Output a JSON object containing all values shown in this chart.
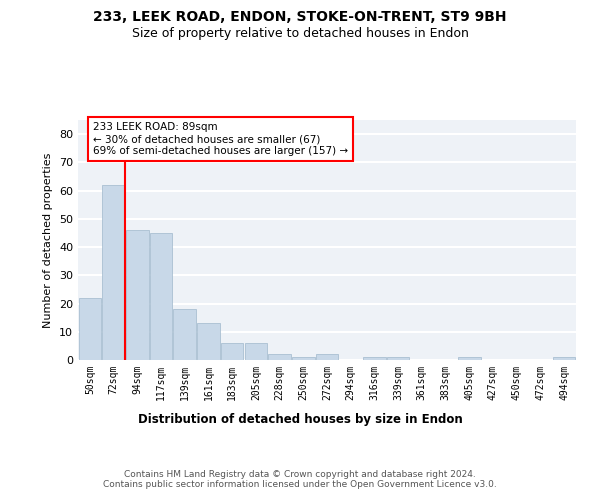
{
  "title1": "233, LEEK ROAD, ENDON, STOKE-ON-TRENT, ST9 9BH",
  "title2": "Size of property relative to detached houses in Endon",
  "xlabel": "Distribution of detached houses by size in Endon",
  "ylabel": "Number of detached properties",
  "bar_color": "#c8d8e8",
  "bar_edge_color": "#a0b8cc",
  "categories": [
    "50sqm",
    "72sqm",
    "94sqm",
    "117sqm",
    "139sqm",
    "161sqm",
    "183sqm",
    "205sqm",
    "228sqm",
    "250sqm",
    "272sqm",
    "294sqm",
    "316sqm",
    "339sqm",
    "361sqm",
    "383sqm",
    "405sqm",
    "427sqm",
    "450sqm",
    "472sqm",
    "494sqm"
  ],
  "values": [
    22,
    62,
    46,
    45,
    18,
    13,
    6,
    6,
    2,
    1,
    2,
    0,
    1,
    1,
    0,
    0,
    1,
    0,
    0,
    0,
    1
  ],
  "ylim": [
    0,
    85
  ],
  "yticks": [
    0,
    10,
    20,
    30,
    40,
    50,
    60,
    70,
    80
  ],
  "red_line_x": 1.5,
  "annotation_text": "233 LEEK ROAD: 89sqm\n← 30% of detached houses are smaller (67)\n69% of semi-detached houses are larger (157) →",
  "footer": "Contains HM Land Registry data © Crown copyright and database right 2024.\nContains public sector information licensed under the Open Government Licence v3.0.",
  "background_color": "#eef2f7",
  "grid_color": "#ffffff",
  "fig_bg_color": "#ffffff"
}
